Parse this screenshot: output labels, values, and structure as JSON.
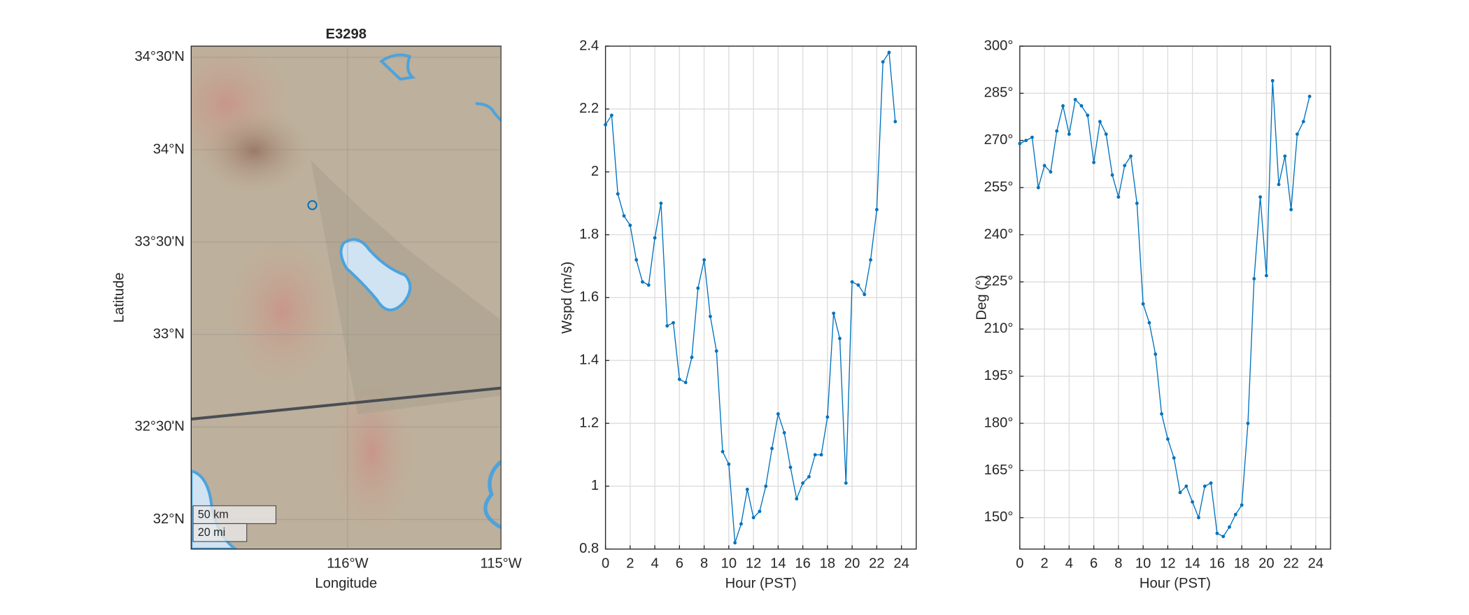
{
  "chart_data": [
    {
      "type": "map",
      "title": "E3298",
      "xlabel": "Longitude",
      "ylabel": "Latitude",
      "xlim": [
        -117.02,
        -115
      ],
      "ylim": [
        31.84,
        34.56
      ],
      "xticks": [
        {
          "value": -116,
          "label": "116°W"
        },
        {
          "value": -115,
          "label": "115°W"
        }
      ],
      "yticks": [
        {
          "value": 32,
          "label": "32°N"
        },
        {
          "value": 32.5,
          "label": "32°30'N"
        },
        {
          "value": 33,
          "label": "33°N"
        },
        {
          "value": 33.5,
          "label": "33°30'N"
        },
        {
          "value": 34,
          "label": "34°N"
        },
        {
          "value": 34.5,
          "label": "34°30'N"
        }
      ],
      "station": {
        "lon": -116.23,
        "lat": 33.7
      },
      "color": "#0072BD",
      "grid": true,
      "scale_bar": [
        "50 km",
        "20 mi"
      ]
    },
    {
      "type": "line",
      "xlabel": "Hour (PST)",
      "ylabel": "Wspd (m/s)",
      "color": "#0072BD",
      "grid": true,
      "x": [
        0,
        0.5,
        1,
        1.5,
        2,
        2.5,
        3,
        3.5,
        4,
        4.5,
        5,
        5.5,
        6,
        6.5,
        7,
        7.5,
        8,
        8.5,
        9,
        9.5,
        10,
        10.5,
        11,
        11.5,
        12,
        12.5,
        13,
        13.5,
        14,
        14.5,
        15,
        15.5,
        16,
        16.5,
        17,
        17.5,
        18,
        18.5,
        19,
        19.5,
        20,
        20.5,
        21,
        21.5,
        22,
        22.5,
        23,
        23.5
      ],
      "values": [
        2.15,
        2.18,
        1.93,
        1.86,
        1.83,
        1.72,
        1.65,
        1.64,
        1.79,
        1.9,
        1.51,
        1.52,
        1.34,
        1.33,
        1.41,
        1.63,
        1.72,
        1.54,
        1.43,
        1.11,
        1.07,
        0.82,
        0.88,
        0.99,
        0.9,
        0.92,
        1.0,
        1.12,
        1.23,
        1.17,
        1.06,
        0.96,
        1.01,
        1.03,
        1.1,
        1.1,
        1.22,
        1.55,
        1.47,
        1.01,
        1.65,
        1.64,
        1.61,
        1.72,
        1.88,
        2.35,
        2.38,
        2.16
      ],
      "xlim": [
        0,
        25.2
      ],
      "ylim": [
        0.8,
        2.4
      ],
      "xticks": [
        0,
        2,
        4,
        6,
        8,
        10,
        12,
        14,
        16,
        18,
        20,
        22,
        24
      ],
      "yticks": [
        0.8,
        1,
        1.2,
        1.4,
        1.6,
        1.8,
        2,
        2.2,
        2.4
      ]
    },
    {
      "type": "line",
      "xlabel": "Hour (PST)",
      "ylabel": "Deg (°)",
      "color": "#0072BD",
      "grid": true,
      "x": [
        0,
        0.5,
        1,
        1.5,
        2,
        2.5,
        3,
        3.5,
        4,
        4.5,
        5,
        5.5,
        6,
        6.5,
        7,
        7.5,
        8,
        8.5,
        9,
        9.5,
        10,
        10.5,
        11,
        11.5,
        12,
        12.5,
        13,
        13.5,
        14,
        14.5,
        15,
        15.5,
        16,
        16.5,
        17,
        17.5,
        18,
        18.5,
        19,
        19.5,
        20,
        20.5,
        21,
        21.5,
        22,
        22.5,
        23,
        23.5
      ],
      "values": [
        269,
        270,
        271,
        255,
        262,
        260,
        273,
        281,
        272,
        283,
        281,
        278,
        263,
        276,
        272,
        259,
        252,
        262,
        265,
        250,
        218,
        212,
        202,
        183,
        175,
        169,
        158,
        160,
        155,
        150,
        160,
        161,
        145,
        144,
        147,
        151,
        154,
        180,
        226,
        252,
        227,
        289,
        256,
        265,
        248,
        272,
        276,
        284
      ],
      "xlim": [
        0,
        25.2
      ],
      "ylim": [
        140,
        300
      ],
      "xticks": [
        0,
        2,
        4,
        6,
        8,
        10,
        12,
        14,
        16,
        18,
        20,
        22,
        24
      ],
      "yticks": [
        {
          "value": 150,
          "label": "150°"
        },
        {
          "value": 165,
          "label": "165°"
        },
        {
          "value": 180,
          "label": "180°"
        },
        {
          "value": 195,
          "label": "195°"
        },
        {
          "value": 210,
          "label": "210°"
        },
        {
          "value": 225,
          "label": "225°"
        },
        {
          "value": 240,
          "label": "240°"
        },
        {
          "value": 255,
          "label": "255°"
        },
        {
          "value": 270,
          "label": "270°"
        },
        {
          "value": 285,
          "label": "285°"
        },
        {
          "value": 300,
          "label": "300°"
        }
      ]
    }
  ]
}
